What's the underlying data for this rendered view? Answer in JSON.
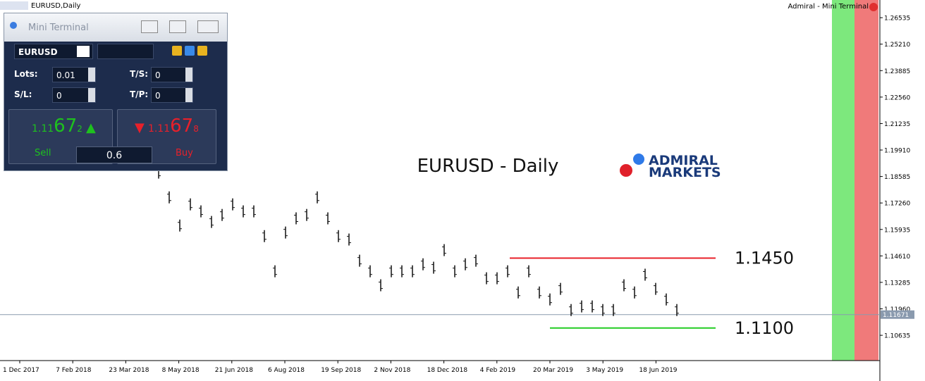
{
  "window_title": "EURUSD,Daily",
  "indicator_label": "Admiral - Mini Terminal",
  "chart": {
    "type": "bar",
    "title": "EURUSD - Daily",
    "logo": [
      "ADMIRAL",
      "MARKETS"
    ],
    "ylim": [
      1.0937,
      1.2742
    ],
    "yticks": [
      1.26535,
      {
        "value": 1.2521,
        "label": "1.25210"
      },
      1.23885,
      {
        "value": 1.2256,
        "label": "1.22560"
      },
      1.21235,
      {
        "value": 1.1991,
        "label": "1.19910"
      },
      1.18585,
      {
        "value": 1.1726,
        "label": "1.17260"
      },
      1.15935,
      {
        "value": 1.1461,
        "label": "1.14610"
      },
      1.13285,
      {
        "value": 1.1196,
        "label": "1.11960"
      },
      1.10635
    ],
    "categories": [
      "1 Dec 2017",
      "7 Feb 2018",
      "23 Mar 2018",
      "8 May 2018",
      "21 Jun 2018",
      "6 Aug 2018",
      "19 Sep 2018",
      "2 Nov 2018",
      "18 Dec 2018",
      "4 Feb 2019",
      "20 Mar 2019",
      "3 May 2019",
      "18 Jun 2019"
    ],
    "highs": [
      1.1908,
      1.1784,
      1.1643,
      1.1749,
      1.1714,
      1.1661,
      1.1696,
      1.1749,
      1.1714,
      1.1714,
      1.159,
      1.1414,
      1.1608,
      1.1679,
      1.1696,
      1.1784,
      1.1679,
      1.159,
      1.1573,
      1.1467,
      1.1414,
      1.1344,
      1.1414,
      1.1414,
      1.1414,
      1.1449,
      1.1432,
      1.152,
      1.1414,
      1.1449,
      1.1467,
      1.1379,
      1.1379,
      1.1414,
      1.1308,
      1.1414,
      1.1308,
      1.1273,
      1.1326,
      1.122,
      1.1238,
      1.1238,
      1.122,
      1.122,
      1.1344,
      1.1308,
      1.1397,
      1.1326,
      1.1273,
      1.122
    ],
    "lows": [
      1.1848,
      1.1724,
      1.1583,
      1.1689,
      1.1654,
      1.1601,
      1.1636,
      1.1689,
      1.1654,
      1.1654,
      1.153,
      1.1354,
      1.1548,
      1.1619,
      1.1636,
      1.1724,
      1.1619,
      1.153,
      1.1513,
      1.1407,
      1.1354,
      1.1284,
      1.1354,
      1.1354,
      1.1354,
      1.1389,
      1.1372,
      1.146,
      1.1354,
      1.1389,
      1.1407,
      1.1319,
      1.1319,
      1.1354,
      1.1248,
      1.1354,
      1.1248,
      1.1213,
      1.1266,
      1.116,
      1.1178,
      1.1178,
      1.116,
      1.116,
      1.1284,
      1.1248,
      1.1337,
      1.1266,
      1.1213,
      1.116
    ],
    "resistance": {
      "value": 1.145,
      "label": "1.1450",
      "color": "#e8202a"
    },
    "support": {
      "value": 1.11,
      "label": "1.1100",
      "color": "#22cc22"
    },
    "current_price": 1.11671
  },
  "terminal": {
    "title": "Mini Terminal",
    "symbol": "EURUSD",
    "fields": [
      {
        "label": "Lots:",
        "value": "0.01"
      },
      {
        "label": "T/S:",
        "value": "0"
      },
      {
        "label": "S/L:",
        "value": "0"
      },
      {
        "label": "T/P:",
        "value": "0"
      }
    ],
    "sell": {
      "big": "1.11",
      "pips": "67",
      "small": "2",
      "label": "Sell"
    },
    "buy": {
      "big": "1.11",
      "pips": "67",
      "small": "8",
      "label": "Buy"
    },
    "spread": "0.6"
  }
}
